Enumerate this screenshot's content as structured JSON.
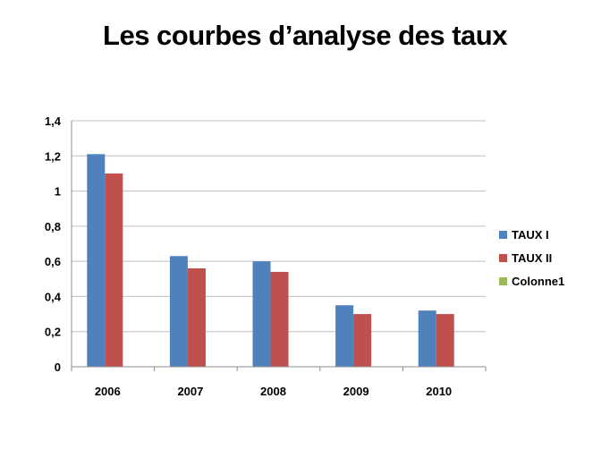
{
  "title": "Les courbes d’analyse des taux",
  "chart_data": {
    "type": "bar",
    "title": "Les courbes d’analyse des taux",
    "categories": [
      "2006",
      "2007",
      "2008",
      "2009",
      "2010"
    ],
    "series": [
      {
        "name": "TAUX I",
        "color": "#4f81bd",
        "values": [
          1.21,
          0.63,
          0.6,
          0.35,
          0.32
        ]
      },
      {
        "name": "TAUX II",
        "color": "#c0504d",
        "values": [
          1.1,
          0.56,
          0.54,
          0.3,
          0.3
        ]
      },
      {
        "name": "Colonne1",
        "color": "#9bbb59",
        "values": [
          null,
          null,
          null,
          null,
          null
        ]
      }
    ],
    "ylim": [
      0,
      1.4
    ],
    "yticks": [
      "0",
      "0,2",
      "0,4",
      "0,6",
      "0,8",
      "1",
      "1,2",
      "1,4"
    ],
    "grid": true,
    "legend_position": "right"
  }
}
